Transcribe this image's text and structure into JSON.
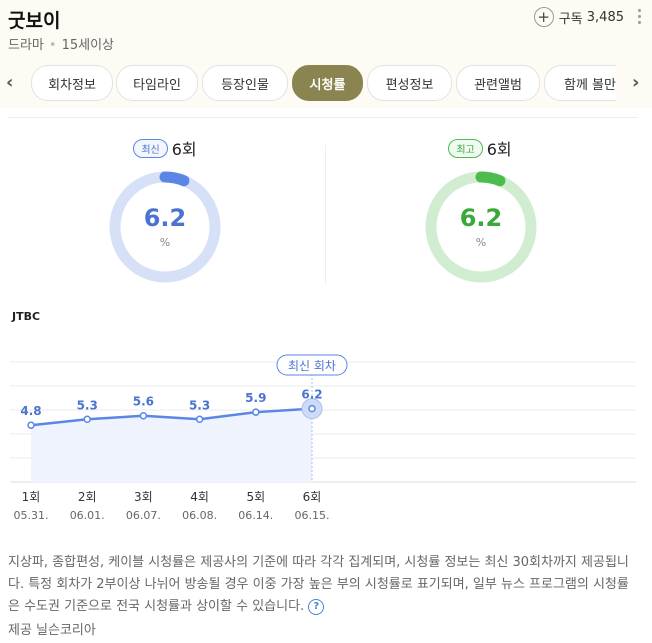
{
  "header": {
    "title": "굿보이",
    "genre": "드라마",
    "rating": "15세이상",
    "subscribe_label": "구독",
    "subscribe_count": "3,485"
  },
  "tabs": [
    {
      "label": "회차정보",
      "active": false
    },
    {
      "label": "타임라인",
      "active": false
    },
    {
      "label": "등장인물",
      "active": false
    },
    {
      "label": "시청률",
      "active": true
    },
    {
      "label": "편성정보",
      "active": false
    },
    {
      "label": "관련앨범",
      "active": false
    },
    {
      "label": "함께 볼만",
      "active": false
    }
  ],
  "nav": {
    "prev_icon": "‹",
    "next_icon": "›"
  },
  "latest": {
    "badge": "최신",
    "episode": "6회",
    "value": "6.2",
    "unit": "%",
    "fraction": 0.062,
    "color": "#5b86e5",
    "track": "#d6e1f8",
    "text_color": "#4a74d0"
  },
  "highest": {
    "badge": "최고",
    "episode": "6회",
    "value": "6.2",
    "unit": "%",
    "fraction": 0.062,
    "color": "#4cbc4c",
    "track": "#d1edd1",
    "text_color": "#3aa83a"
  },
  "chart_data": {
    "type": "line",
    "title": "JTBC",
    "categories": [
      "1회",
      "2회",
      "3회",
      "4회",
      "5회",
      "6회"
    ],
    "dates": [
      "05.31.",
      "06.01.",
      "06.07.",
      "06.08.",
      "06.14.",
      "06.15."
    ],
    "series": [
      {
        "values": [
          4.8,
          5.3,
          5.6,
          5.3,
          5.9,
          6.2
        ]
      }
    ],
    "data_labels": [
      "4.8",
      "5.3",
      "5.6",
      "5.3",
      "5.9",
      "6.2"
    ],
    "ylim": [
      0,
      12
    ],
    "grid": true,
    "annotation": "최신 회차",
    "colors": {
      "line": "#5b86e5",
      "area": "#eef3fd",
      "label": "#4a74d0"
    }
  },
  "footer": {
    "notice": "지상파, 종합편성, 케이블 시청률은 제공사의 기준에 따라 각각 집계되며, 시청률 정보는 최신 30회차까지 제공됩니다. 특정 회차가 2부이상 나뉘어 방송될 경우 이중 가장 높은 부의 시청률로 표기되며, 일부 뉴스 프로그램의 시청률은 수도권 기준으로 전국 시청률과 상이할 수 있습니다.",
    "help_icon": "?",
    "provider": "제공 닐슨코리아"
  }
}
